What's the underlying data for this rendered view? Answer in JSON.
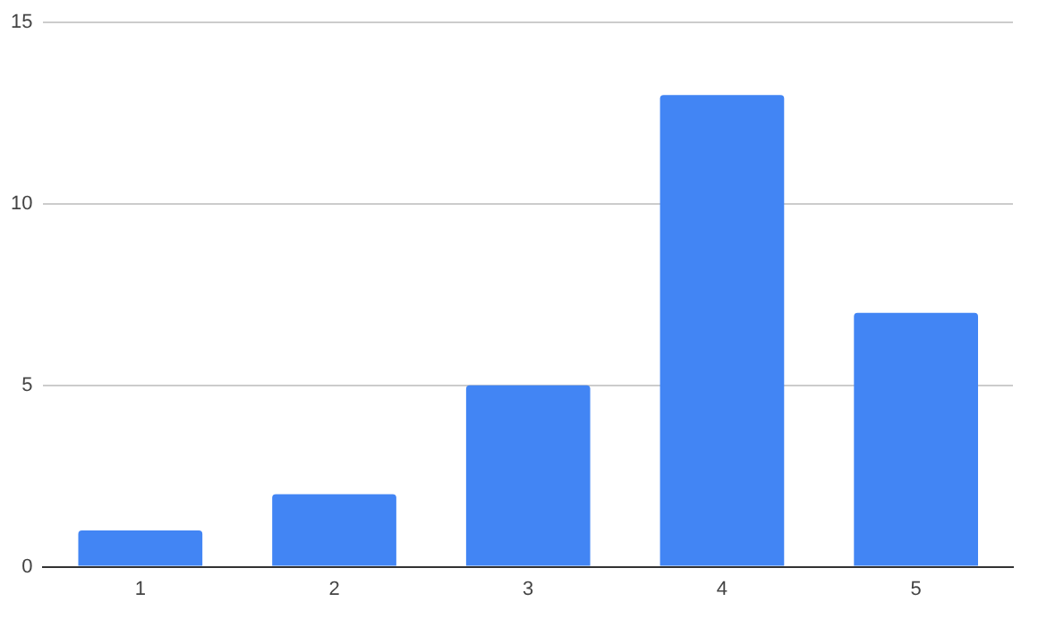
{
  "chart_data": {
    "type": "bar",
    "categories": [
      "1",
      "2",
      "3",
      "4",
      "5"
    ],
    "values": [
      1,
      2,
      5,
      13,
      7
    ],
    "color": "#4285f4",
    "ylim": [
      0,
      15
    ],
    "yticks": [
      0,
      5,
      10,
      15
    ],
    "grid": "y",
    "legend": false
  }
}
